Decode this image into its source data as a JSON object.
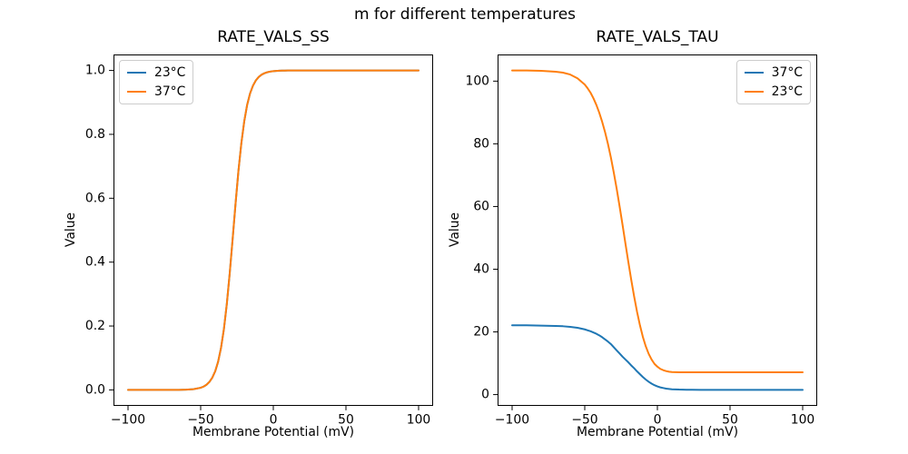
{
  "figure": {
    "suptitle": "m for different temperatures",
    "background": "#ffffff",
    "text_color": "#000000",
    "line_colors": {
      "blue": "#1f77b4",
      "orange": "#ff7f0e"
    }
  },
  "chart_data": [
    {
      "type": "line",
      "title": "RATE_VALS_SS",
      "xlabel": "Membrane Potential (mV)",
      "ylabel": "Value",
      "xlim": [
        -110,
        110
      ],
      "ylim": [
        -0.05,
        1.05
      ],
      "grid": false,
      "xtick_values": [
        -100,
        -50,
        0,
        50,
        100
      ],
      "xtick_labels": [
        "−100",
        "−50",
        "0",
        "50",
        "100"
      ],
      "ytick_values": [
        0,
        0.2,
        0.4,
        0.6,
        0.8,
        1.0
      ],
      "ytick_labels": [
        "0.0",
        "0.2",
        "0.4",
        "0.6",
        "0.8",
        "1.0"
      ],
      "legend": {
        "position": "upper-left",
        "entries": [
          {
            "label": "23°C",
            "color": "#1f77b4"
          },
          {
            "label": "37°C",
            "color": "#ff7f0e"
          }
        ]
      },
      "x": [
        -100,
        -90,
        -80,
        -70,
        -65,
        -60,
        -55,
        -50,
        -48,
        -46,
        -44,
        -42,
        -40,
        -38,
        -36,
        -34,
        -32,
        -30,
        -28,
        -26,
        -24,
        -22,
        -20,
        -18,
        -16,
        -14,
        -12,
        -10,
        -8,
        -6,
        -4,
        -2,
        0,
        2,
        4,
        6,
        8,
        10,
        15,
        20,
        30,
        40,
        50,
        60,
        70,
        80,
        90,
        100
      ],
      "series": [
        {
          "name": "23°C",
          "color": "#1f77b4",
          "values": [
            0,
            0,
            0,
            0.0001,
            0.0002,
            0.0007,
            0.0022,
            0.0067,
            0.0104,
            0.0161,
            0.0249,
            0.0382,
            0.0583,
            0.0881,
            0.1313,
            0.1907,
            0.269,
            0.365,
            0.4723,
            0.5824,
            0.6854,
            0.7722,
            0.8411,
            0.8923,
            0.928,
            0.9525,
            0.969,
            0.9798,
            0.9869,
            0.9916,
            0.9946,
            0.9965,
            0.9978,
            0.9986,
            0.9991,
            0.9994,
            0.9996,
            0.9998,
            0.9999,
            1,
            1,
            1,
            1,
            1,
            1,
            1,
            1,
            1
          ]
        },
        {
          "name": "37°C",
          "color": "#ff7f0e",
          "values": [
            0,
            0,
            0,
            0.0001,
            0.0002,
            0.0007,
            0.0022,
            0.0067,
            0.0104,
            0.0161,
            0.0249,
            0.0382,
            0.0583,
            0.0881,
            0.1313,
            0.1907,
            0.269,
            0.365,
            0.4723,
            0.5824,
            0.6854,
            0.7722,
            0.8411,
            0.8923,
            0.928,
            0.9525,
            0.969,
            0.9798,
            0.9869,
            0.9916,
            0.9946,
            0.9965,
            0.9978,
            0.9986,
            0.9991,
            0.9994,
            0.9996,
            0.9998,
            0.9999,
            1,
            1,
            1,
            1,
            1,
            1,
            1,
            1,
            1
          ]
        }
      ]
    },
    {
      "type": "line",
      "title": "RATE_VALS_TAU",
      "xlabel": "Membrane Potential (mV)",
      "ylabel": "Value",
      "xlim": [
        -110,
        110
      ],
      "ylim": [
        -3.6,
        108.5
      ],
      "grid": false,
      "xtick_values": [
        -100,
        -50,
        0,
        50,
        100
      ],
      "xtick_labels": [
        "−100",
        "−50",
        "0",
        "50",
        "100"
      ],
      "ytick_values": [
        0,
        20,
        40,
        60,
        80,
        100
      ],
      "ytick_labels": [
        "0",
        "20",
        "40",
        "60",
        "80",
        "100"
      ],
      "legend": {
        "position": "upper-right",
        "entries": [
          {
            "label": "37°C",
            "color": "#1f77b4"
          },
          {
            "label": "23°C",
            "color": "#ff7f0e"
          }
        ]
      },
      "x": [
        -100,
        -90,
        -80,
        -70,
        -65,
        -60,
        -55,
        -50,
        -48,
        -46,
        -44,
        -42,
        -40,
        -38,
        -36,
        -34,
        -32,
        -30,
        -28,
        -26,
        -24,
        -22,
        -20,
        -18,
        -16,
        -14,
        -12,
        -10,
        -8,
        -6,
        -4,
        -2,
        0,
        2,
        4,
        6,
        8,
        10,
        15,
        20,
        30,
        40,
        50,
        60,
        70,
        80,
        90,
        100
      ],
      "series": [
        {
          "name": "37°C",
          "color": "#1f77b4",
          "values": [
            22.1,
            22.1,
            22,
            21.9,
            21.8,
            21.6,
            21.3,
            20.8,
            20.5,
            20.2,
            19.8,
            19.4,
            18.9,
            18.3,
            17.6,
            16.9,
            16.1,
            15.1,
            14.1,
            13.1,
            12.1,
            11.2,
            10.3,
            9.3,
            8.4,
            7.4,
            6.5,
            5.6,
            4.8,
            4.1,
            3.5,
            3,
            2.6,
            2.3,
            2.1,
            1.9,
            1.8,
            1.7,
            1.6,
            1.55,
            1.52,
            1.5,
            1.5,
            1.5,
            1.5,
            1.5,
            1.5,
            1.5
          ]
        },
        {
          "name": "23°C",
          "color": "#ff7f0e",
          "values": [
            103.4,
            103.4,
            103.3,
            103,
            102.7,
            102.1,
            100.9,
            98.9,
            97.7,
            96.3,
            94.5,
            92.4,
            89.9,
            87,
            83.7,
            79.9,
            75.6,
            70.8,
            65.6,
            60,
            54.2,
            48.2,
            42.3,
            36.6,
            31.3,
            26.4,
            22.1,
            18.4,
            15.4,
            13,
            11.2,
            9.8,
            8.9,
            8.2,
            7.8,
            7.5,
            7.3,
            7.2,
            7.1,
            7.1,
            7.1,
            7.1,
            7.1,
            7.1,
            7.1,
            7.1,
            7.1,
            7.1
          ]
        }
      ]
    }
  ]
}
